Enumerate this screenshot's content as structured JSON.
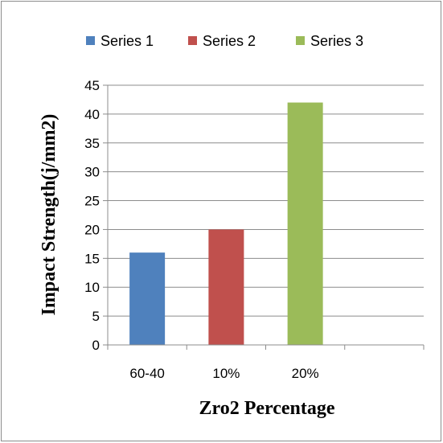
{
  "chart_data": {
    "type": "bar",
    "title": "",
    "xlabel": "Zro2 Percentage",
    "ylabel": "Impact Strength(j/mm2)",
    "ylim": [
      0,
      45
    ],
    "yticks": [
      0,
      5,
      10,
      15,
      20,
      25,
      30,
      35,
      40,
      45
    ],
    "categories": [
      "60-40",
      "10%",
      "20%",
      ""
    ],
    "series": [
      {
        "name": "Series 1",
        "color": "#4f81bd",
        "values": [
          16,
          null,
          null,
          null
        ]
      },
      {
        "name": "Series 2",
        "color": "#c0504d",
        "values": [
          null,
          20,
          null,
          null
        ]
      },
      {
        "name": "Series 3",
        "color": "#9bbb59",
        "values": [
          null,
          null,
          42,
          null
        ]
      }
    ],
    "grid": true,
    "legend_position": "top"
  }
}
